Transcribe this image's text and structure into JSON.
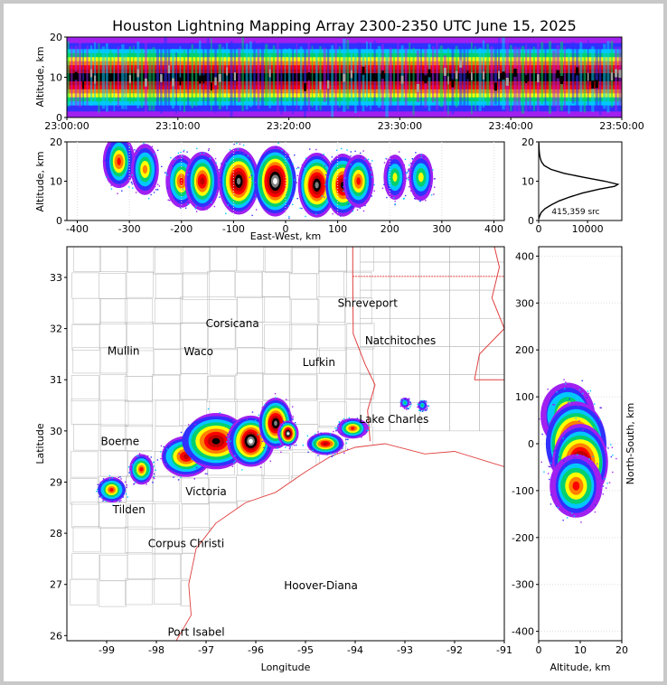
{
  "chart_data": {
    "type": "lightning-mapping-multipanel",
    "title": "Houston Lightning Mapping Array 2300-2350 UTC June 15, 2025",
    "colors": {
      "density_scale": [
        "#a020f0",
        "#3030ff",
        "#00c8ff",
        "#00d070",
        "#ffff00",
        "#ff8000",
        "#ff0000",
        "#c00000",
        "#000000",
        "#808080",
        "#ffffff"
      ],
      "state_borders": "#e04040",
      "county_lines": "#c0c0c0",
      "gulf_coast": "#e04040"
    },
    "panels": {
      "time_altitude": {
        "ylabel": "Altitude, km",
        "ylim": [
          0,
          20
        ],
        "yticks": [
          "0",
          "10",
          "20"
        ],
        "xtick_labels": [
          "23:00:00",
          "23:10:00",
          "23:20:00",
          "23:30:00",
          "23:40:00",
          "23:50:00"
        ],
        "x_minutes": [
          0,
          50
        ],
        "core_altitude_km": [
          6,
          14
        ],
        "peak_altitude_km": 10
      },
      "ew_altitude": {
        "xlabel": "East-West, km",
        "ylabel": "Altitude, km",
        "xlim": [
          -420,
          420
        ],
        "ylim": [
          0,
          20
        ],
        "xtick_labels": [
          "-400",
          "-300",
          "-200",
          "-100",
          "0",
          "100",
          "200",
          "300",
          "400"
        ],
        "ytick_labels": [
          "0",
          "10",
          "20"
        ],
        "clusters": [
          {
            "x_km": -320,
            "alt_km": 15,
            "intensity": 0.55
          },
          {
            "x_km": -270,
            "alt_km": 13,
            "intensity": 0.5
          },
          {
            "x_km": -200,
            "alt_km": 10,
            "intensity": 0.55
          },
          {
            "x_km": -160,
            "alt_km": 10,
            "intensity": 0.7
          },
          {
            "x_km": -90,
            "alt_km": 10,
            "intensity": 0.9
          },
          {
            "x_km": -20,
            "alt_km": 10,
            "intensity": 1.0
          },
          {
            "x_km": 60,
            "alt_km": 9,
            "intensity": 0.85
          },
          {
            "x_km": 110,
            "alt_km": 9,
            "intensity": 0.8
          },
          {
            "x_km": 140,
            "alt_km": 10,
            "intensity": 0.55
          },
          {
            "x_km": 210,
            "alt_km": 11,
            "intensity": 0.35
          },
          {
            "x_km": 260,
            "alt_km": 11,
            "intensity": 0.4
          }
        ]
      },
      "altitude_histogram": {
        "xlim": [
          0,
          17000
        ],
        "ylim": [
          0,
          20
        ],
        "xtick_labels": [
          "0",
          "10000"
        ],
        "ytick_labels": [
          "0",
          "10",
          "20"
        ],
        "annotation": "415,359 src",
        "profile": [
          {
            "alt": 0.5,
            "count": 50
          },
          {
            "alt": 1,
            "count": 150
          },
          {
            "alt": 2,
            "count": 500
          },
          {
            "alt": 3,
            "count": 1300
          },
          {
            "alt": 4,
            "count": 2600
          },
          {
            "alt": 5,
            "count": 4200
          },
          {
            "alt": 6,
            "count": 6400
          },
          {
            "alt": 7,
            "count": 9000
          },
          {
            "alt": 8,
            "count": 12500
          },
          {
            "alt": 8.7,
            "count": 15500
          },
          {
            "alt": 9.2,
            "count": 16200
          },
          {
            "alt": 10,
            "count": 13500
          },
          {
            "alt": 11,
            "count": 9200
          },
          {
            "alt": 12,
            "count": 5200
          },
          {
            "alt": 13,
            "count": 2500
          },
          {
            "alt": 14,
            "count": 1100
          },
          {
            "alt": 15,
            "count": 550
          },
          {
            "alt": 16,
            "count": 300
          },
          {
            "alt": 17,
            "count": 170
          },
          {
            "alt": 18,
            "count": 100
          },
          {
            "alt": 19,
            "count": 60
          },
          {
            "alt": 19.8,
            "count": 40
          }
        ]
      },
      "plan_view": {
        "xlabel": "Longitude",
        "ylabel": "Latitude",
        "xlim": [
          -99.8,
          -91.0
        ],
        "ylim": [
          25.9,
          33.6
        ],
        "xtick_labels": [
          "-99",
          "-98",
          "-97",
          "-96",
          "-95",
          "-94",
          "-93",
          "-92",
          "-91"
        ],
        "ytick_labels": [
          "26",
          "27",
          "28",
          "29",
          "30",
          "31",
          "32",
          "33"
        ],
        "places": [
          {
            "name": "Shreveport",
            "lon": -93.75,
            "lat": 32.5,
            "color": "#000000"
          },
          {
            "name": "Corsicana",
            "lon": -96.47,
            "lat": 32.1,
            "color": "#000000"
          },
          {
            "name": "Natchitoches",
            "lon": -93.09,
            "lat": 31.76,
            "color": "#000000"
          },
          {
            "name": "Mullin",
            "lon": -98.66,
            "lat": 31.56,
            "color": "#f08040"
          },
          {
            "name": "Waco",
            "lon": -97.15,
            "lat": 31.55,
            "color": "#000000"
          },
          {
            "name": "Lufkin",
            "lon": -94.73,
            "lat": 31.34,
            "color": "#000000"
          },
          {
            "name": "Lake Charles",
            "lon": -93.22,
            "lat": 30.23,
            "color": "#000000"
          },
          {
            "name": "Boerne",
            "lon": -98.73,
            "lat": 29.79,
            "color": "#000000"
          },
          {
            "name": "Victoria",
            "lon": -97.0,
            "lat": 28.81,
            "color": "#000000"
          },
          {
            "name": "Tilden",
            "lon": -98.55,
            "lat": 28.46,
            "color": "#000000"
          },
          {
            "name": "Corpus Christi",
            "lon": -97.4,
            "lat": 27.8,
            "color": "#000000"
          },
          {
            "name": "Hoover-Diana",
            "lon": -94.69,
            "lat": 26.98,
            "color": "#2020c0"
          },
          {
            "name": "Port Isabel",
            "lon": -97.2,
            "lat": 26.07,
            "color": "#000000"
          }
        ],
        "storms": [
          {
            "lon": -98.9,
            "lat": 28.85,
            "rlon": 0.3,
            "rlat": 0.25,
            "intensity": 0.6
          },
          {
            "lon": -98.3,
            "lat": 29.25,
            "rlon": 0.25,
            "rlat": 0.3,
            "intensity": 0.55
          },
          {
            "lon": -97.4,
            "lat": 29.5,
            "rlon": 0.5,
            "rlat": 0.4,
            "intensity": 0.65
          },
          {
            "lon": -96.8,
            "lat": 29.8,
            "rlon": 0.7,
            "rlat": 0.55,
            "intensity": 0.8
          },
          {
            "lon": -96.1,
            "lat": 29.8,
            "rlon": 0.45,
            "rlat": 0.5,
            "intensity": 0.95
          },
          {
            "lon": -95.6,
            "lat": 30.15,
            "rlon": 0.35,
            "rlat": 0.5,
            "intensity": 0.85
          },
          {
            "lon": -95.35,
            "lat": 29.95,
            "rlon": 0.2,
            "rlat": 0.25,
            "intensity": 1.0
          },
          {
            "lon": -94.6,
            "lat": 29.75,
            "rlon": 0.4,
            "rlat": 0.22,
            "intensity": 0.7
          },
          {
            "lon": -94.05,
            "lat": 30.05,
            "rlon": 0.3,
            "rlat": 0.2,
            "intensity": 0.6
          },
          {
            "lon": -93.0,
            "lat": 30.55,
            "rlon": 0.1,
            "rlat": 0.1,
            "intensity": 0.25
          },
          {
            "lon": -92.65,
            "lat": 30.5,
            "rlon": 0.1,
            "rlat": 0.1,
            "intensity": 0.25
          }
        ]
      },
      "ns_altitude": {
        "xlabel": "Altitude, km",
        "ylabel": "North-South, km",
        "xlim": [
          0,
          20
        ],
        "ylim": [
          -420,
          420
        ],
        "xtick_labels": [
          "0",
          "10",
          "20"
        ],
        "ytick_labels": [
          "-400",
          "-300",
          "-200",
          "-100",
          "0",
          "100",
          "200",
          "300",
          "400"
        ],
        "clusters": [
          {
            "alt_km": 7,
            "ns_km": 60,
            "intensity": 0.6
          },
          {
            "alt_km": 9,
            "ns_km": 0,
            "intensity": 1.0
          },
          {
            "alt_km": 10,
            "ns_km": -40,
            "intensity": 0.85
          },
          {
            "alt_km": 9,
            "ns_km": -90,
            "intensity": 0.55
          }
        ]
      }
    }
  }
}
